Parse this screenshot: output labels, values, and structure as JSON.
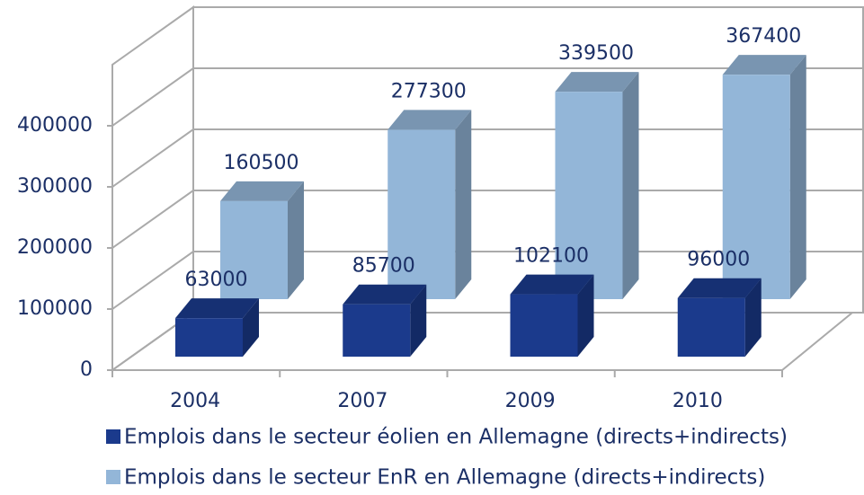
{
  "chart_data": {
    "type": "bar3d",
    "categories": [
      "2004",
      "2007",
      "2009",
      "2010"
    ],
    "series": [
      {
        "name": "Emplois dans le secteur éolien en Allemagne (directs+indirects)",
        "color": "#1b3a8c",
        "values": [
          63000,
          85700,
          102100,
          96000
        ]
      },
      {
        "name": "Emplois dans le secteur EnR en Allemagne (directs+indirects)",
        "color": "#93b6d8",
        "values": [
          160500,
          277300,
          339500,
          367400
        ]
      }
    ],
    "ylim": [
      0,
      500000
    ],
    "yticks": [
      0,
      100000,
      200000,
      300000,
      400000
    ],
    "grid": true
  }
}
